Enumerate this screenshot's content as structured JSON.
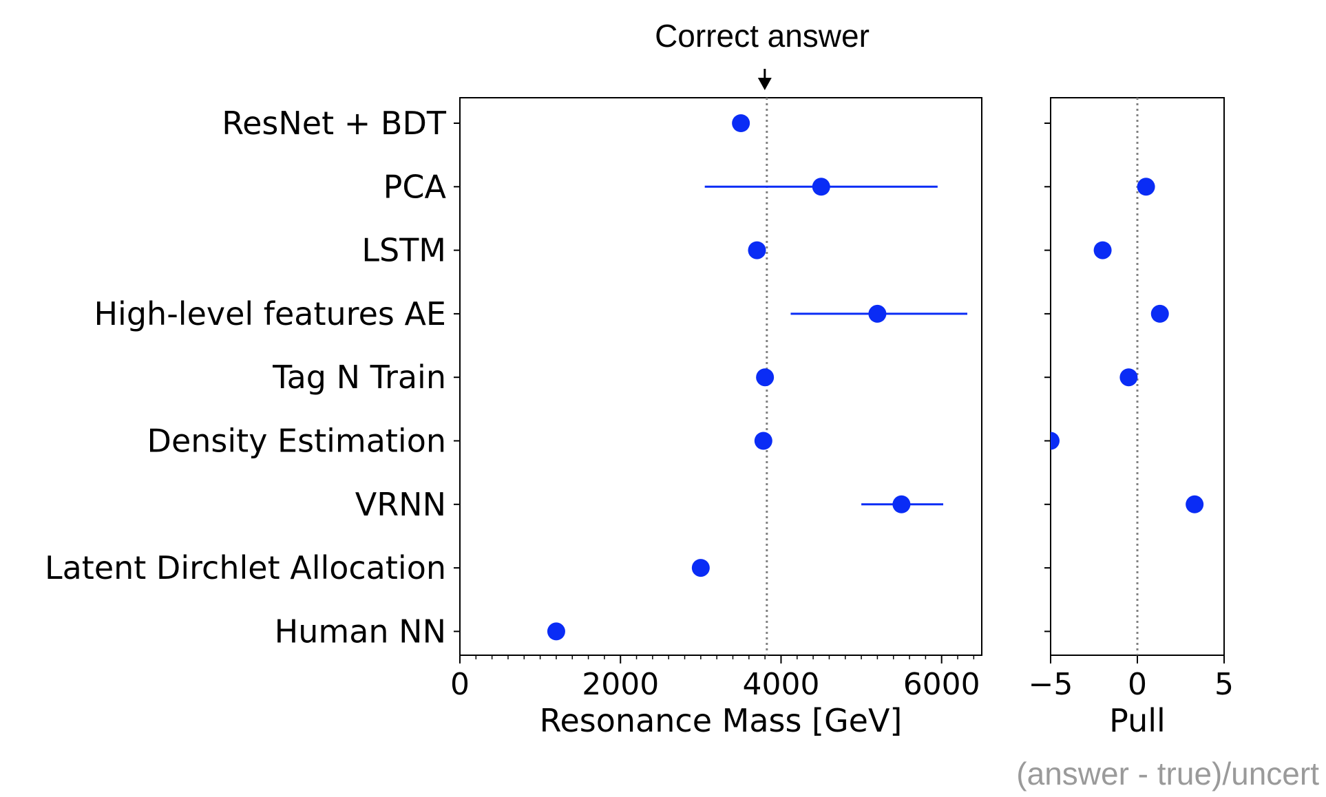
{
  "chart_data": {
    "type": "scatter",
    "annotation": "Correct answer",
    "footnote": "(answer - true)/uncert",
    "categories": [
      "ResNet + BDT",
      "PCA",
      "LSTM",
      "High-level features AE",
      "Tag N Train",
      "Density Estimation",
      "VRNN",
      "Latent Dirchlet Allocation",
      "Human NN"
    ],
    "correct_answer": 3823,
    "mass_panel": {
      "xlabel": "Resonance Mass [GeV]",
      "xlim": [
        0,
        6500
      ],
      "xticks": [
        "0",
        "2000",
        "4000",
        "6000"
      ],
      "values": [
        3500,
        4500,
        3700,
        5200,
        3800,
        3780,
        5500,
        3000,
        1200
      ],
      "err_low": [
        null,
        3050,
        null,
        4120,
        null,
        null,
        5000,
        null,
        null
      ],
      "err_high": [
        null,
        5950,
        null,
        6320,
        null,
        null,
        6020,
        null,
        null
      ]
    },
    "pull_panel": {
      "xlabel": "Pull",
      "xlim": [
        -5,
        5
      ],
      "xticks": [
        "−5",
        "0",
        "5"
      ],
      "values": [
        null,
        0.5,
        -2.0,
        1.3,
        -0.5,
        -5.0,
        3.3,
        null,
        null
      ]
    },
    "colors": {
      "marker": "#0a2cf5",
      "reference_line": "#808080"
    }
  }
}
